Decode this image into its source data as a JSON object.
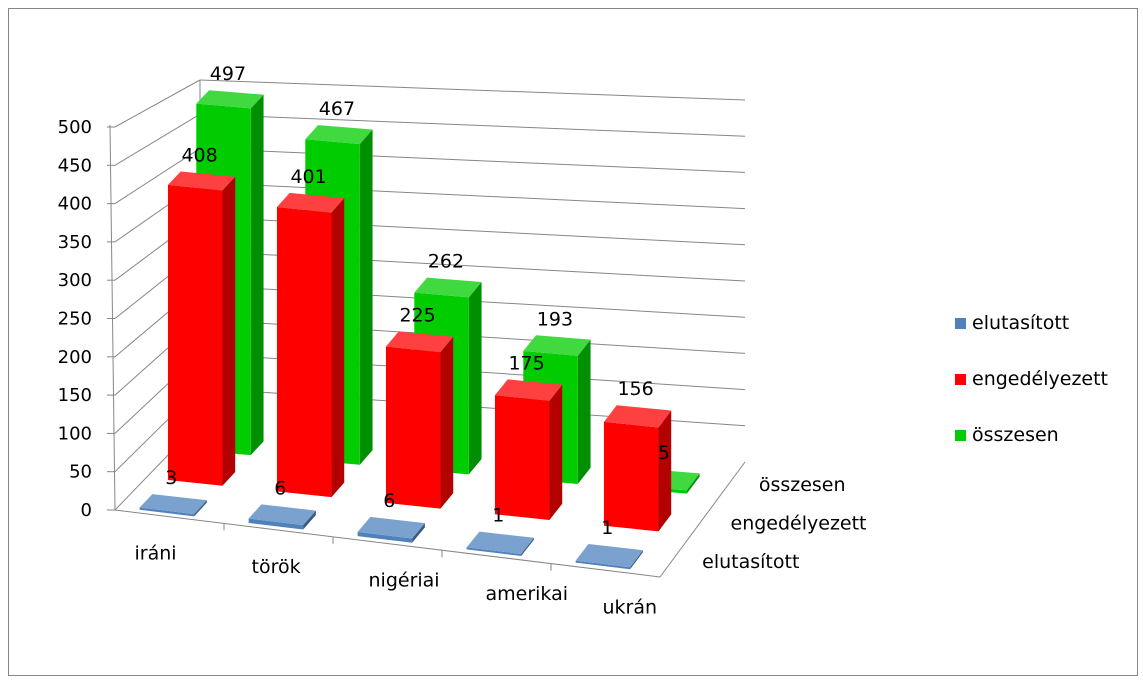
{
  "chart_data": {
    "type": "bar",
    "subtype": "3d-column",
    "categories": [
      "iráni",
      "török",
      "nigériai",
      "amerikai",
      "ukrán"
    ],
    "series": [
      {
        "name": "elutasított",
        "color": "#4F81BD",
        "values": [
          3,
          6,
          6,
          1,
          1
        ]
      },
      {
        "name": "engedélyezett",
        "color": "#FF0000",
        "values": [
          408,
          401,
          225,
          175,
          156
        ]
      },
      {
        "name": "összesen",
        "color": "#00CC00",
        "values": [
          497,
          467,
          262,
          193,
          5
        ]
      }
    ],
    "y_ticks": [
      "0",
      "50",
      "100",
      "150",
      "200",
      "250",
      "300",
      "350",
      "400",
      "450",
      "500"
    ],
    "depth_labels": [
      "összesen",
      "engedélyezett",
      "elutasított"
    ],
    "ylim": [
      0,
      500
    ],
    "grid": true,
    "legend_position": "right"
  }
}
